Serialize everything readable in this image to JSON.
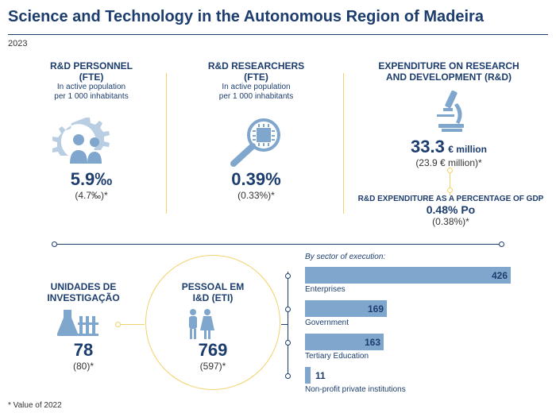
{
  "header": {
    "title": "Science and Technology in the Autonomous Region of Madeira",
    "year": "2023"
  },
  "personnel": {
    "heading_l1": "R&D PERSONNEL",
    "heading_l2": "(FTE)",
    "sub_l1": "In active population",
    "sub_l2": "per 1 000 inhabitants",
    "value": "5.9‰",
    "prev": "(4.7‰)*",
    "icon": "gear-people-icon"
  },
  "researchers": {
    "heading_l1": "R&D RESEARCHERS",
    "heading_l2": "(FTE)",
    "sub_l1": "In active population",
    "sub_l2": "per 1 000 inhabitants",
    "value": "0.39%",
    "prev": "(0.33%)*",
    "icon": "magnifier-chip-icon"
  },
  "expenditure": {
    "heading_l1": "EXPENDITURE ON RESEARCH",
    "heading_l2": "AND DEVELOPMENT (R&D)",
    "value": "33.3",
    "unit": "€ million",
    "prev": "(23.9 € million)*",
    "icon": "microscope-icon",
    "gdp_heading": "R&D EXPENDITURE AS A PERCENTAGE OF GDP",
    "gdp_value": "0.48% Po",
    "gdp_prev": "(0.38%)*"
  },
  "units": {
    "heading_l1": "UNIDADES DE",
    "heading_l2": "INVESTIGAÇÃO",
    "value": "78",
    "prev": "(80)*",
    "icon": "lab-flask-icon"
  },
  "staff": {
    "heading_l1": "PESSOAL EM",
    "heading_l2": "I&D (ETI)",
    "value": "769",
    "prev": "(597)*",
    "icon": "people-icon"
  },
  "sectors": {
    "title": "By sector of execution:",
    "items": [
      {
        "label": "Enterprises",
        "value": 426
      },
      {
        "label": "Government",
        "value": 169
      },
      {
        "label": "Tertiary Education",
        "value": 163
      },
      {
        "label": "Non-profit private institutions",
        "value": 11
      }
    ]
  },
  "colors": {
    "navy": "#1c3d6e",
    "bar": "#7fa6cc",
    "accent_yellow": "#f2d36b",
    "icon_blue": "#7fa6cc"
  },
  "footnote": "* Value of 2022"
}
